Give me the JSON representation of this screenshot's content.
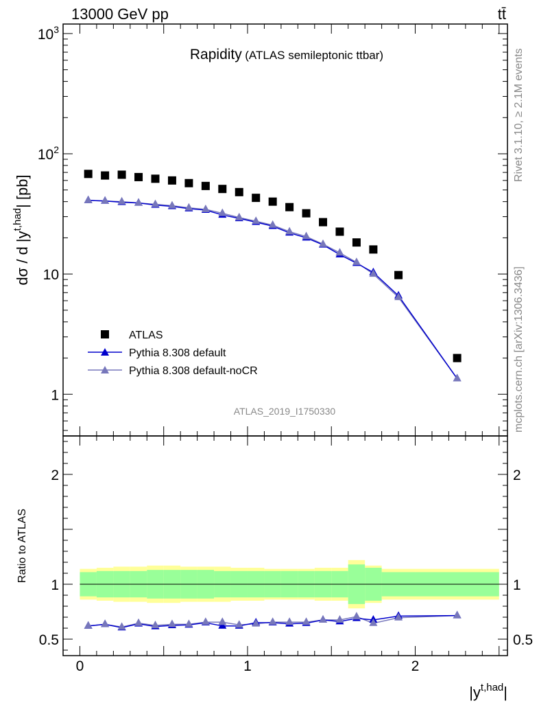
{
  "header": {
    "energy_label": "13000 GeV pp",
    "process_label": "tt̄"
  },
  "side_labels": {
    "rivet": "Rivet 3.1.10, ≥ 2.1M events",
    "mcplots": "mcplots.cern.ch [arXiv:1306.3436]"
  },
  "plot_title": {
    "main": "Rapidity",
    "sub": "(ATLAS semileptonic ttbar)"
  },
  "analysis_id": "ATLAS_2019_I1750330",
  "colors": {
    "atlas": "#000000",
    "default": "#0000cc",
    "noCR": "#7777bb",
    "band_inner": "#99ff99",
    "band_outer": "#ffff99"
  },
  "chart_data": [
    {
      "type": "scatter",
      "yscale": "log",
      "ylabel_main": "dσ / d |y",
      "ylabel_sup": "t,had",
      "ylabel_tail": "| [pb]",
      "xlim": [
        -0.1,
        2.55
      ],
      "ylim": [
        0.45,
        1200
      ],
      "y_ticks": [
        {
          "value": 1,
          "label": "1"
        },
        {
          "value": 10,
          "label": "10"
        },
        {
          "value": 100,
          "label": "10",
          "sup": "2"
        },
        {
          "value": 1000,
          "label": "10",
          "sup": "3"
        }
      ],
      "legend_placement": "bottom-left",
      "legend": [
        {
          "name": "ATLAS",
          "marker": "square"
        },
        {
          "name": "Pythia 8.308 default",
          "marker": "triangle"
        },
        {
          "name": "Pythia 8.308 default-noCR",
          "marker": "triangle"
        }
      ],
      "series": [
        {
          "name": "ATLAS",
          "x": [
            0.05,
            0.15,
            0.25,
            0.35,
            0.45,
            0.55,
            0.65,
            0.75,
            0.85,
            0.95,
            1.05,
            1.15,
            1.25,
            1.35,
            1.45,
            1.55,
            1.65,
            1.75,
            1.9,
            2.25
          ],
          "y": [
            68,
            66,
            67,
            64,
            62,
            60,
            57,
            54,
            51,
            48,
            43,
            40,
            36,
            32,
            27,
            22.5,
            18.3,
            16,
            9.8,
            2.0
          ]
        },
        {
          "name": "Pythia 8.308 default",
          "x": [
            0.05,
            0.15,
            0.25,
            0.35,
            0.45,
            0.55,
            0.65,
            0.75,
            0.85,
            0.95,
            1.05,
            1.15,
            1.25,
            1.35,
            1.45,
            1.55,
            1.65,
            1.75,
            1.9,
            2.25
          ],
          "y": [
            41,
            40.5,
            39.5,
            39,
            37.5,
            36.5,
            35,
            34,
            31,
            29,
            27,
            25,
            22,
            20,
            17.5,
            14.5,
            12.3,
            10.3,
            6.6,
            1.35
          ]
        },
        {
          "name": "Pythia 8.308 default-noCR",
          "x": [
            0.05,
            0.15,
            0.25,
            0.35,
            0.45,
            0.55,
            0.65,
            0.75,
            0.85,
            0.95,
            1.05,
            1.15,
            1.25,
            1.35,
            1.45,
            1.55,
            1.65,
            1.75,
            1.9,
            2.25
          ],
          "y": [
            41,
            40.5,
            40,
            39,
            38,
            37,
            35.5,
            34.5,
            32,
            29.5,
            27.5,
            25.5,
            22.5,
            20.5,
            17.7,
            15,
            12.5,
            10,
            6.4,
            1.35
          ]
        }
      ]
    },
    {
      "type": "line",
      "ylabel": "Ratio to ATLAS",
      "xlabel_main": "|y",
      "xlabel_sup": "t,had",
      "xlabel_tail": "|",
      "xlim": [
        -0.1,
        2.55
      ],
      "ylim": [
        0.35,
        2.35
      ],
      "x_ticks": [
        {
          "value": 0,
          "label": "0"
        },
        {
          "value": 1,
          "label": "1"
        },
        {
          "value": 2,
          "label": "2"
        }
      ],
      "y_ticks": [
        {
          "value": 0.5,
          "label": "0.5"
        },
        {
          "value": 1,
          "label": "1"
        },
        {
          "value": 2,
          "label": "2"
        }
      ],
      "reference_line": 1,
      "bands": {
        "bin_edges": [
          0,
          0.1,
          0.2,
          0.3,
          0.4,
          0.5,
          0.6,
          0.7,
          0.8,
          0.9,
          1.0,
          1.1,
          1.2,
          1.3,
          1.4,
          1.5,
          1.6,
          1.7,
          1.8,
          2.0,
          2.5
        ],
        "inner_low": [
          0.89,
          0.88,
          0.88,
          0.88,
          0.87,
          0.87,
          0.87,
          0.87,
          0.88,
          0.88,
          0.88,
          0.88,
          0.88,
          0.88,
          0.88,
          0.88,
          0.82,
          0.85,
          0.89,
          0.89
        ],
        "inner_high": [
          1.11,
          1.12,
          1.12,
          1.12,
          1.13,
          1.13,
          1.13,
          1.13,
          1.12,
          1.12,
          1.12,
          1.12,
          1.12,
          1.12,
          1.12,
          1.12,
          1.18,
          1.15,
          1.11,
          1.11
        ],
        "outer_low": [
          0.86,
          0.85,
          0.84,
          0.84,
          0.83,
          0.83,
          0.84,
          0.84,
          0.84,
          0.85,
          0.85,
          0.86,
          0.86,
          0.86,
          0.85,
          0.85,
          0.78,
          0.83,
          0.86,
          0.86
        ],
        "outer_high": [
          1.14,
          1.15,
          1.16,
          1.16,
          1.17,
          1.17,
          1.16,
          1.16,
          1.16,
          1.15,
          1.15,
          1.14,
          1.14,
          1.14,
          1.15,
          1.15,
          1.22,
          1.17,
          1.14,
          1.14
        ]
      },
      "series": [
        {
          "name": "Pythia 8.308 default",
          "x": [
            0.05,
            0.15,
            0.25,
            0.35,
            0.45,
            0.55,
            0.65,
            0.75,
            0.85,
            0.95,
            1.05,
            1.15,
            1.25,
            1.35,
            1.45,
            1.55,
            1.65,
            1.75,
            1.9,
            2.25
          ],
          "y": [
            0.62,
            0.635,
            0.605,
            0.64,
            0.615,
            0.625,
            0.63,
            0.65,
            0.62,
            0.62,
            0.65,
            0.65,
            0.64,
            0.645,
            0.675,
            0.66,
            0.69,
            0.675,
            0.71,
            0.715
          ]
        },
        {
          "name": "Pythia 8.308 default-noCR",
          "x": [
            0.05,
            0.15,
            0.25,
            0.35,
            0.45,
            0.55,
            0.65,
            0.75,
            0.85,
            0.95,
            1.05,
            1.15,
            1.25,
            1.35,
            1.45,
            1.55,
            1.65,
            1.75,
            1.9,
            2.25
          ],
          "y": [
            0.62,
            0.635,
            0.61,
            0.645,
            0.625,
            0.635,
            0.635,
            0.655,
            0.655,
            0.63,
            0.64,
            0.655,
            0.655,
            0.655,
            0.675,
            0.675,
            0.705,
            0.645,
            0.695,
            0.715
          ]
        }
      ]
    }
  ]
}
